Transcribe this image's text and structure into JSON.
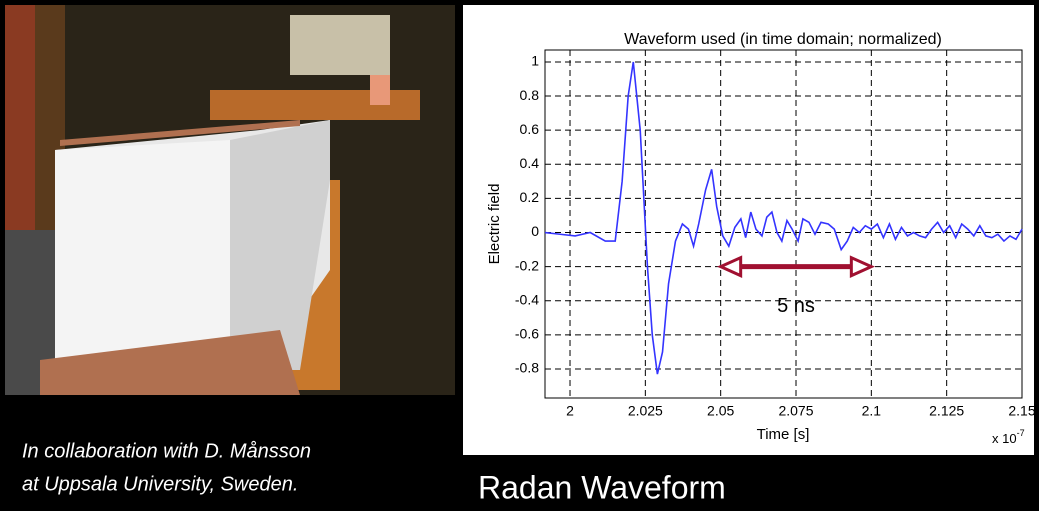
{
  "chart_data": {
    "type": "line",
    "title": "Waveform used (in time domain; normalized)",
    "x_label": "Time [s]",
    "y_label": "Electric field",
    "x_multiplier": {
      "base": "x 10",
      "exponent": "-7"
    },
    "x": [
      1.9917,
      1.9967,
      2.0017,
      2.0067,
      2.0117,
      2.015,
      2.0173,
      2.0193,
      2.021,
      2.0233,
      2.0257,
      2.0273,
      2.029,
      2.0307,
      2.0327,
      2.035,
      2.0373,
      2.0393,
      2.041,
      2.0427,
      2.045,
      2.047,
      2.0487,
      2.0507,
      2.0527,
      2.0547,
      2.0567,
      2.0583,
      2.06,
      2.0617,
      2.0637,
      2.0653,
      2.067,
      2.0687,
      2.0703,
      2.072,
      2.0737,
      2.0757,
      2.0773,
      2.0793,
      2.0813,
      2.0833,
      2.0857,
      2.0877,
      2.09,
      2.092,
      2.094,
      2.096,
      2.098,
      2.1,
      2.102,
      2.104,
      2.106,
      2.108,
      2.11,
      2.112,
      2.114,
      2.116,
      2.118,
      2.12,
      2.122,
      2.124,
      2.126,
      2.128,
      2.13,
      2.132,
      2.134,
      2.136,
      2.138,
      2.14,
      2.142,
      2.144,
      2.146,
      2.148,
      2.15
    ],
    "series": [
      {
        "name": "Waveform",
        "color": "#3434ff",
        "values": [
          0,
          -0.01,
          -0.02,
          0,
          -0.05,
          -0.05,
          0.3,
          0.8,
          1.0,
          0.6,
          -0.2,
          -0.6,
          -0.83,
          -0.7,
          -0.3,
          -0.05,
          0.05,
          0.02,
          -0.08,
          0.05,
          0.25,
          0.37,
          0.15,
          -0.02,
          -0.08,
          0.03,
          0.08,
          -0.03,
          0.12,
          0.02,
          -0.02,
          0.09,
          0.12,
          0.0,
          -0.05,
          0.07,
          0.02,
          -0.05,
          0.08,
          0.06,
          -0.01,
          0.06,
          0.05,
          0.02,
          -0.1,
          -0.05,
          0.03,
          0.0,
          0.04,
          0.02,
          0.05,
          -0.03,
          0.05,
          -0.04,
          0.03,
          -0.02,
          0.0,
          -0.02,
          -0.03,
          0.02,
          0.06,
          0.0,
          0.04,
          -0.03,
          0.05,
          0.02,
          -0.02,
          0.04,
          -0.02,
          -0.03,
          -0.01,
          -0.05,
          -0.02,
          -0.04,
          0.02
        ]
      }
    ],
    "xlim": [
      1.9917,
      2.15
    ],
    "ylim": [
      -0.97,
      1.07
    ],
    "xticks": [
      2,
      2.025,
      2.05,
      2.075,
      2.1,
      2.125,
      2.15
    ],
    "yticks": [
      1,
      0.8,
      0.6,
      0.4,
      0.2,
      0,
      -0.2,
      -0.4,
      -0.6,
      -0.8
    ],
    "grid": true,
    "annotation": {
      "text": "5 ns",
      "x": [
        2.05,
        2.1
      ],
      "y": -0.2,
      "color": "#a01030"
    }
  },
  "caption": [
    "In collaboration with D. Månsson",
    "at Uppsala University, Sweden."
  ],
  "slide_title": "Radan Waveform"
}
